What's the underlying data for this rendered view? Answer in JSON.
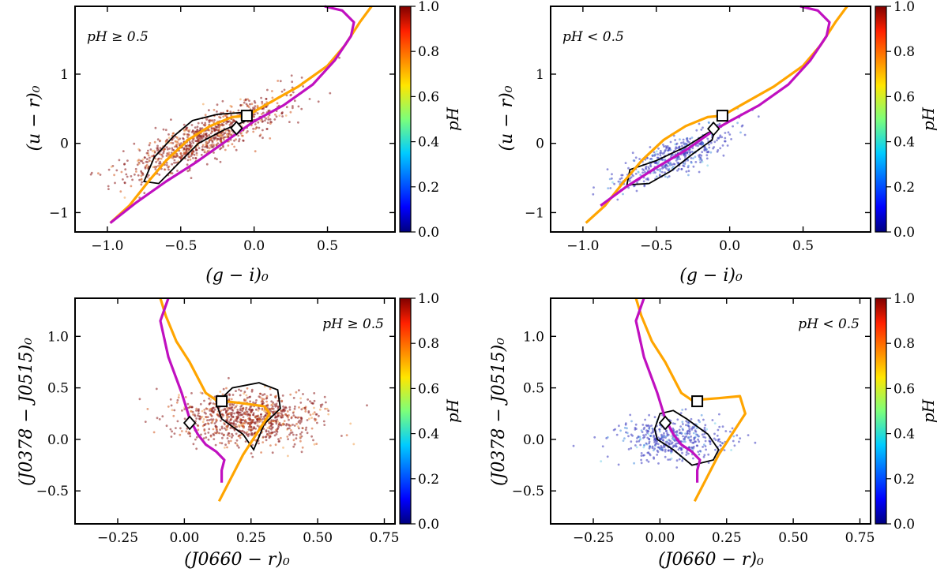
{
  "colors": {
    "orange_track": "#ffa500",
    "magenta_track": "#c010c0",
    "contour": "#000000",
    "high_points": "#8b1a1a",
    "low_points": "#3a3ac0"
  },
  "chart_data": [
    {
      "type": "scatter",
      "id": "gi-ur-high",
      "xlabel": "(g − i)₀",
      "ylabel": "(u − r)₀",
      "xlim": [
        -1.22,
        0.96
      ],
      "ylim": [
        -1.28,
        1.98
      ],
      "xticks": [
        {
          "v": -1.0,
          "label": "−1.0"
        },
        {
          "v": -0.5,
          "label": "−0.5"
        },
        {
          "v": 0.0,
          "label": "0.0"
        },
        {
          "v": 0.5,
          "label": "0.5"
        }
      ],
      "yticks": [
        {
          "v": -1,
          "label": "−1"
        },
        {
          "v": 0,
          "label": "0"
        },
        {
          "v": 1,
          "label": "1"
        }
      ],
      "annotation": "pH ≥ 0.5",
      "annotation_position": "top-left",
      "colorbar": {
        "label": "pH",
        "range": [
          0.0,
          1.0
        ],
        "ticks": [
          "0.0",
          "0.2",
          "0.4",
          "0.6",
          "0.8",
          "1.0"
        ]
      },
      "scatter_mode": "high",
      "orange_line": [
        [
          -0.98,
          -1.15
        ],
        [
          -0.85,
          -0.9
        ],
        [
          -0.72,
          -0.55
        ],
        [
          -0.6,
          -0.25
        ],
        [
          -0.45,
          0.05
        ],
        [
          -0.3,
          0.25
        ],
        [
          -0.15,
          0.38
        ],
        [
          -0.05,
          0.4
        ],
        [
          0.1,
          0.58
        ],
        [
          0.3,
          0.82
        ],
        [
          0.5,
          1.12
        ],
        [
          0.62,
          1.42
        ],
        [
          0.72,
          1.75
        ],
        [
          0.8,
          1.98
        ]
      ],
      "magenta_line": [
        [
          -0.98,
          -1.15
        ],
        [
          -0.8,
          -0.85
        ],
        [
          -0.6,
          -0.55
        ],
        [
          -0.4,
          -0.28
        ],
        [
          -0.2,
          0.02
        ],
        [
          -0.08,
          0.2
        ],
        [
          0.0,
          0.32
        ],
        [
          0.2,
          0.55
        ],
        [
          0.4,
          0.85
        ],
        [
          0.55,
          1.2
        ],
        [
          0.66,
          1.55
        ],
        [
          0.68,
          1.75
        ],
        [
          0.6,
          1.92
        ],
        [
          0.48,
          1.98
        ]
      ],
      "contour": [
        [
          -0.75,
          -0.55
        ],
        [
          -0.68,
          -0.2
        ],
        [
          -0.55,
          0.1
        ],
        [
          -0.42,
          0.33
        ],
        [
          -0.25,
          0.42
        ],
        [
          -0.05,
          0.45
        ],
        [
          -0.05,
          0.33
        ],
        [
          -0.2,
          0.2
        ],
        [
          -0.38,
          0.0
        ],
        [
          -0.52,
          -0.3
        ],
        [
          -0.65,
          -0.58
        ],
        [
          -0.75,
          -0.55
        ]
      ],
      "square_marker": [
        -0.05,
        0.4
      ],
      "diamond_marker": [
        -0.12,
        0.22
      ],
      "scatter_center": [
        -0.32,
        0.1
      ],
      "scatter_spread": [
        0.28,
        0.32
      ]
    },
    {
      "type": "scatter",
      "id": "gi-ur-low",
      "xlabel": "(g − i)₀",
      "ylabel": "(u − r)₀",
      "xlim": [
        -1.22,
        0.96
      ],
      "ylim": [
        -1.28,
        1.98
      ],
      "xticks": [
        {
          "v": -1.0,
          "label": "−1.0"
        },
        {
          "v": -0.5,
          "label": "−0.5"
        },
        {
          "v": 0.0,
          "label": "0.0"
        },
        {
          "v": 0.5,
          "label": "0.5"
        }
      ],
      "yticks": [
        {
          "v": -1,
          "label": "−1"
        },
        {
          "v": 0,
          "label": "0"
        },
        {
          "v": 1,
          "label": "1"
        }
      ],
      "annotation": "pH < 0.5",
      "annotation_position": "top-left",
      "colorbar": {
        "label": "pH",
        "range": [
          0.0,
          1.0
        ],
        "ticks": [
          "0.0",
          "0.2",
          "0.4",
          "0.6",
          "0.8",
          "1.0"
        ]
      },
      "scatter_mode": "low",
      "orange_line": [
        [
          -0.98,
          -1.15
        ],
        [
          -0.85,
          -0.9
        ],
        [
          -0.72,
          -0.55
        ],
        [
          -0.6,
          -0.25
        ],
        [
          -0.45,
          0.05
        ],
        [
          -0.3,
          0.25
        ],
        [
          -0.15,
          0.38
        ],
        [
          -0.05,
          0.4
        ],
        [
          0.1,
          0.58
        ],
        [
          0.3,
          0.82
        ],
        [
          0.5,
          1.12
        ],
        [
          0.62,
          1.42
        ],
        [
          0.72,
          1.75
        ],
        [
          0.8,
          1.98
        ]
      ],
      "magenta_line": [
        [
          -0.88,
          -0.9
        ],
        [
          -0.7,
          -0.62
        ],
        [
          -0.5,
          -0.35
        ],
        [
          -0.3,
          -0.1
        ],
        [
          -0.1,
          0.2
        ],
        [
          0.0,
          0.32
        ],
        [
          0.2,
          0.55
        ],
        [
          0.4,
          0.85
        ],
        [
          0.55,
          1.2
        ],
        [
          0.66,
          1.55
        ],
        [
          0.68,
          1.75
        ],
        [
          0.6,
          1.92
        ],
        [
          0.48,
          1.98
        ]
      ],
      "contour": [
        [
          -0.7,
          -0.6
        ],
        [
          -0.68,
          -0.38
        ],
        [
          -0.5,
          -0.25
        ],
        [
          -0.3,
          -0.05
        ],
        [
          -0.15,
          0.15
        ],
        [
          -0.1,
          0.2
        ],
        [
          -0.12,
          0.05
        ],
        [
          -0.25,
          -0.15
        ],
        [
          -0.4,
          -0.4
        ],
        [
          -0.55,
          -0.58
        ],
        [
          -0.7,
          -0.6
        ]
      ],
      "square_marker": [
        -0.05,
        0.4
      ],
      "diamond_marker": [
        -0.11,
        0.21
      ],
      "scatter_center": [
        -0.38,
        -0.2
      ],
      "scatter_spread": [
        0.2,
        0.24
      ]
    },
    {
      "type": "scatter",
      "id": "j0660-j0378-high",
      "xlabel": "(J0660 − r)₀",
      "ylabel": "(J0378 − J0515)₀",
      "xlim": [
        -0.41,
        0.79
      ],
      "ylim": [
        -0.82,
        1.37
      ],
      "xticks": [
        {
          "v": -0.25,
          "label": "−0.25"
        },
        {
          "v": 0.0,
          "label": "0.00"
        },
        {
          "v": 0.25,
          "label": "0.25"
        },
        {
          "v": 0.5,
          "label": "0.50"
        },
        {
          "v": 0.75,
          "label": "0.75"
        }
      ],
      "yticks": [
        {
          "v": -0.5,
          "label": "−0.5"
        },
        {
          "v": 0.0,
          "label": "0.0"
        },
        {
          "v": 0.5,
          "label": "0.5"
        },
        {
          "v": 1.0,
          "label": "1.0"
        }
      ],
      "annotation": "pH ≥ 0.5",
      "annotation_position": "top-right",
      "colorbar": {
        "label": "pH",
        "range": [
          0.0,
          1.0
        ],
        "ticks": [
          "0.0",
          "0.2",
          "0.4",
          "0.6",
          "0.8",
          "1.0"
        ]
      },
      "scatter_mode": "high",
      "orange_line": [
        [
          -0.09,
          1.37
        ],
        [
          -0.07,
          1.2
        ],
        [
          -0.03,
          0.95
        ],
        [
          0.02,
          0.75
        ],
        [
          0.05,
          0.6
        ],
        [
          0.08,
          0.45
        ],
        [
          0.12,
          0.38
        ],
        [
          0.22,
          0.35
        ],
        [
          0.3,
          0.32
        ],
        [
          0.32,
          0.25
        ],
        [
          0.27,
          0.05
        ],
        [
          0.22,
          -0.15
        ],
        [
          0.17,
          -0.4
        ],
        [
          0.13,
          -0.6
        ]
      ],
      "magenta_line": [
        [
          -0.06,
          1.37
        ],
        [
          -0.09,
          1.15
        ],
        [
          -0.06,
          0.8
        ],
        [
          -0.01,
          0.45
        ],
        [
          0.02,
          0.2
        ],
        [
          0.05,
          0.05
        ],
        [
          0.08,
          -0.05
        ],
        [
          0.12,
          -0.12
        ],
        [
          0.15,
          -0.2
        ],
        [
          0.14,
          -0.3
        ],
        [
          0.14,
          -0.42
        ]
      ],
      "contour": [
        [
          0.12,
          0.35
        ],
        [
          0.18,
          0.5
        ],
        [
          0.28,
          0.55
        ],
        [
          0.35,
          0.48
        ],
        [
          0.36,
          0.3
        ],
        [
          0.3,
          0.15
        ],
        [
          0.26,
          -0.1
        ],
        [
          0.22,
          0.05
        ],
        [
          0.14,
          0.2
        ],
        [
          0.12,
          0.35
        ]
      ],
      "square_marker": [
        0.14,
        0.37
      ],
      "diamond_marker": [
        0.02,
        0.16
      ],
      "scatter_center": [
        0.24,
        0.2
      ],
      "scatter_spread": [
        0.13,
        0.25
      ]
    },
    {
      "type": "scatter",
      "id": "j0660-j0378-low",
      "xlabel": "(J0660 − r)₀",
      "ylabel": "(J0378 − J0515)₀",
      "xlim": [
        -0.41,
        0.79
      ],
      "ylim": [
        -0.82,
        1.37
      ],
      "xticks": [
        {
          "v": -0.25,
          "label": "−0.25"
        },
        {
          "v": 0.0,
          "label": "0.00"
        },
        {
          "v": 0.25,
          "label": "0.25"
        },
        {
          "v": 0.5,
          "label": "0.50"
        },
        {
          "v": 0.75,
          "label": "0.75"
        }
      ],
      "yticks": [
        {
          "v": -0.5,
          "label": "−0.5"
        },
        {
          "v": 0.0,
          "label": "0.0"
        },
        {
          "v": 0.5,
          "label": "0.5"
        },
        {
          "v": 1.0,
          "label": "1.0"
        }
      ],
      "annotation": "pH < 0.5",
      "annotation_position": "top-right",
      "colorbar": {
        "label": "pH",
        "range": [
          0.0,
          1.0
        ],
        "ticks": [
          "0.0",
          "0.2",
          "0.4",
          "0.6",
          "0.8",
          "1.0"
        ]
      },
      "scatter_mode": "low",
      "orange_line": [
        [
          -0.09,
          1.37
        ],
        [
          -0.07,
          1.2
        ],
        [
          -0.03,
          0.95
        ],
        [
          0.02,
          0.75
        ],
        [
          0.05,
          0.6
        ],
        [
          0.08,
          0.45
        ],
        [
          0.12,
          0.38
        ],
        [
          0.22,
          0.4
        ],
        [
          0.3,
          0.42
        ],
        [
          0.32,
          0.25
        ],
        [
          0.27,
          0.05
        ],
        [
          0.22,
          -0.15
        ],
        [
          0.17,
          -0.4
        ],
        [
          0.13,
          -0.6
        ]
      ],
      "magenta_line": [
        [
          -0.06,
          1.37
        ],
        [
          -0.09,
          1.15
        ],
        [
          -0.06,
          0.8
        ],
        [
          -0.01,
          0.45
        ],
        [
          0.02,
          0.2
        ],
        [
          0.05,
          0.05
        ],
        [
          0.08,
          -0.05
        ],
        [
          0.12,
          -0.12
        ],
        [
          0.15,
          -0.2
        ],
        [
          0.14,
          -0.3
        ],
        [
          0.14,
          -0.42
        ]
      ],
      "contour": [
        [
          -0.02,
          0.1
        ],
        [
          0.0,
          0.25
        ],
        [
          0.05,
          0.28
        ],
        [
          0.1,
          0.2
        ],
        [
          0.18,
          0.05
        ],
        [
          0.22,
          -0.1
        ],
        [
          0.2,
          -0.2
        ],
        [
          0.12,
          -0.25
        ],
        [
          0.05,
          -0.1
        ],
        [
          -0.01,
          0.0
        ],
        [
          -0.02,
          0.1
        ]
      ],
      "square_marker": [
        0.14,
        0.37
      ],
      "diamond_marker": [
        0.02,
        0.16
      ],
      "scatter_center": [
        0.05,
        0.0
      ],
      "scatter_spread": [
        0.1,
        0.2
      ]
    }
  ]
}
